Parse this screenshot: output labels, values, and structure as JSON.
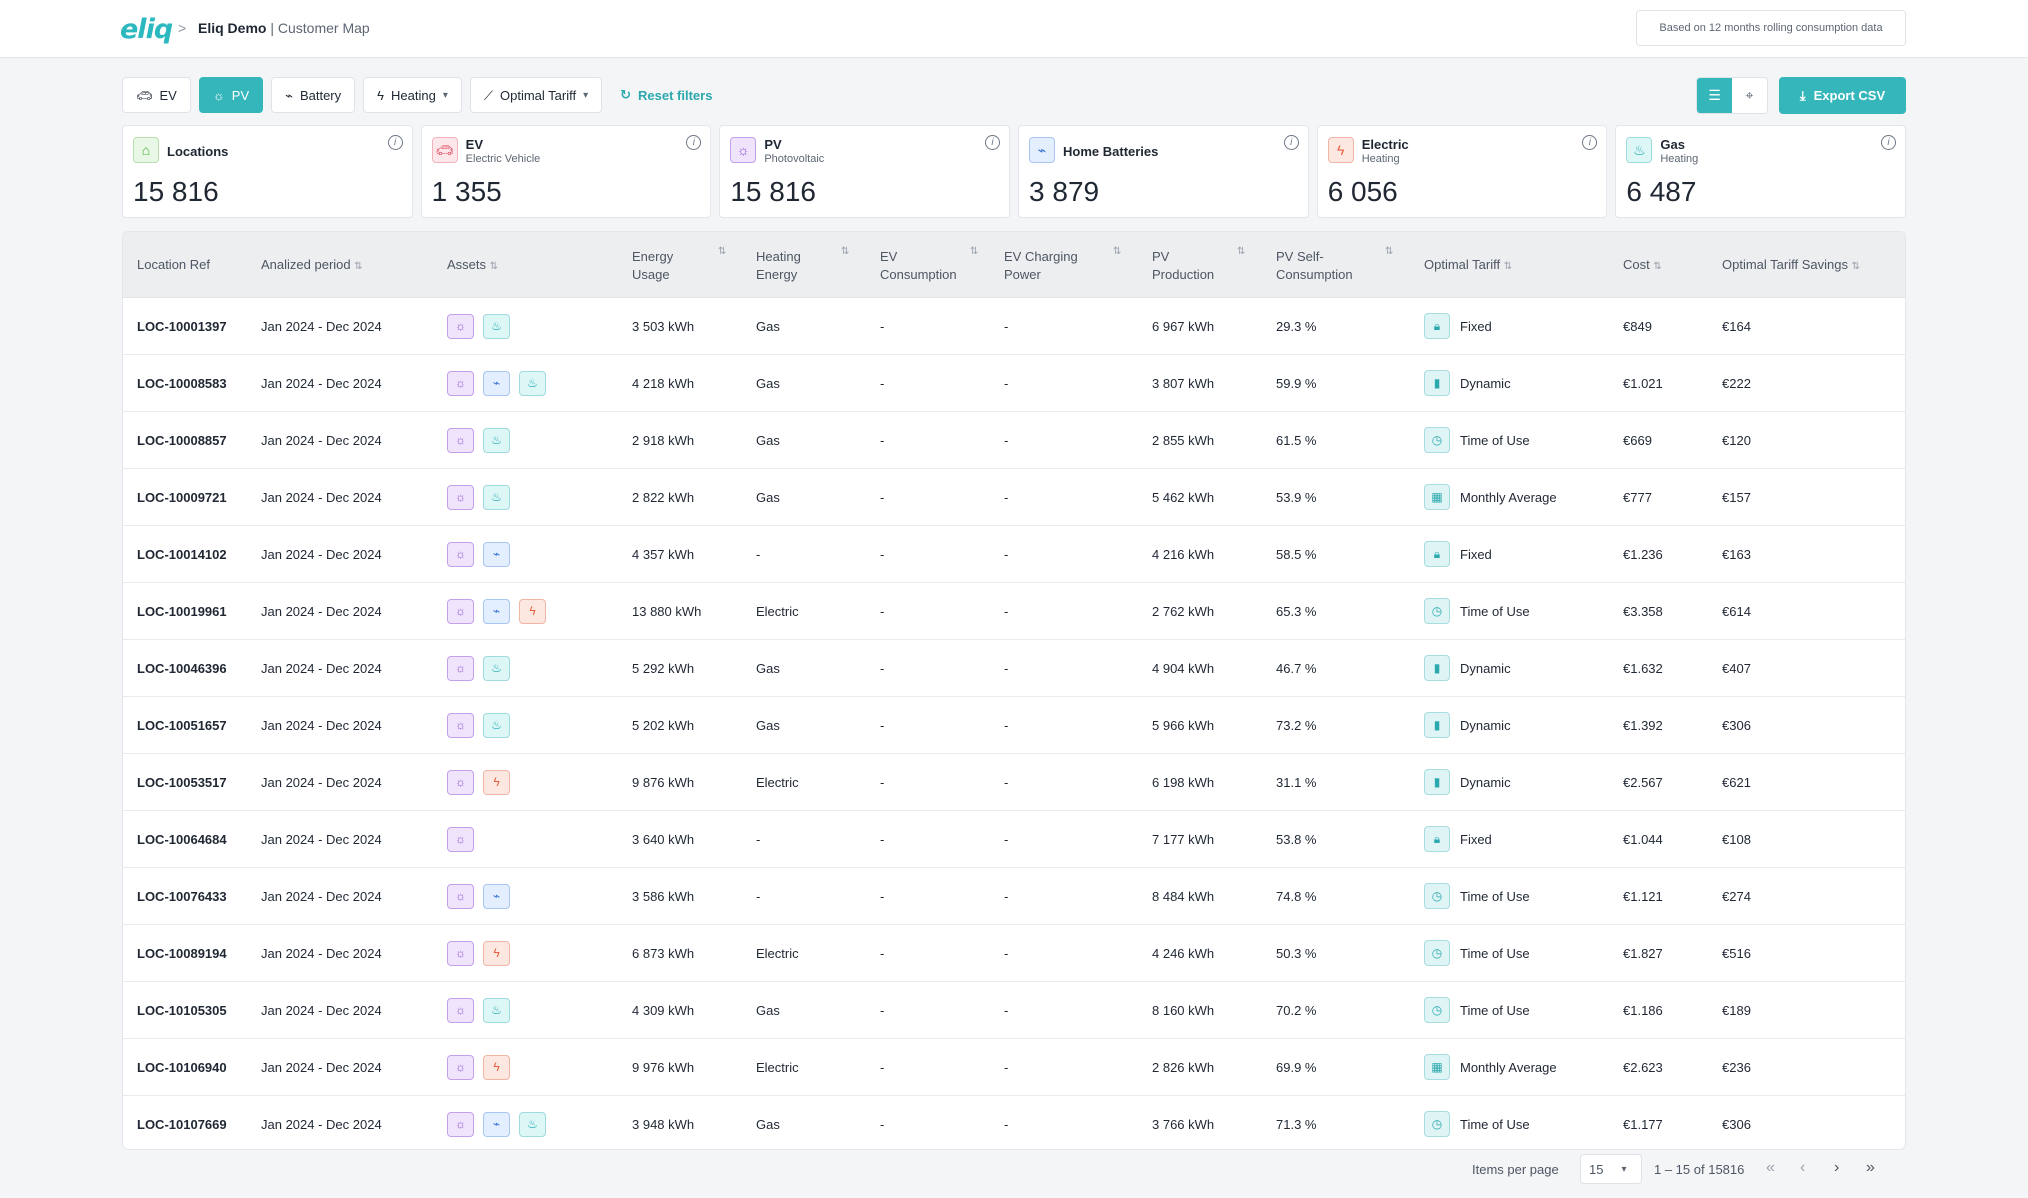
{
  "header": {
    "logo": "eliq",
    "separator": ">",
    "org": "Eliq Demo",
    "page": "| Customer Map",
    "info": "Based on 12 months rolling consumption data"
  },
  "filters": {
    "ev": "EV",
    "pv": "PV",
    "battery": "Battery",
    "heating": "Heating",
    "tariff": "Optimal Tariff",
    "reset": "Reset filters"
  },
  "toolbar": {
    "export": "Export CSV"
  },
  "cards": [
    {
      "title": "Locations",
      "sub": "",
      "value": "15 816",
      "icon": "home-icon"
    },
    {
      "title": "EV",
      "sub": "Electric Vehicle",
      "value": "1 355",
      "icon": "car-icon"
    },
    {
      "title": "PV",
      "sub": "Photovoltaic",
      "value": "15 816",
      "icon": "sun-icon"
    },
    {
      "title": "Home Batteries",
      "sub": "",
      "value": "3 879",
      "icon": "battery-icon"
    },
    {
      "title": "Electric",
      "sub": "Heating",
      "value": "6 056",
      "icon": "bolt-icon"
    },
    {
      "title": "Gas",
      "sub": "Heating",
      "value": "6 487",
      "icon": "flame-icon"
    }
  ],
  "columns": {
    "ref": "Location Ref",
    "period": "Analized period",
    "assets": "Assets",
    "energy_1": "Energy",
    "energy_2": "Usage",
    "heating_1": "Heating",
    "heating_2": "Energy",
    "evc_1": "EV",
    "evc_2": "Consumption",
    "evp_1": "EV Charging",
    "evp_2": "Power",
    "pvp_1": "PV",
    "pvp_2": "Production",
    "pvs_1": "PV Self-",
    "pvs_2": "Consumption",
    "tariff": "Optimal Tariff",
    "cost": "Cost",
    "savings": "Optimal Tariff Savings"
  },
  "rows": [
    {
      "ref": "LOC-10001397",
      "period": "Jan 2024 - Dec 2024",
      "assets": [
        "pv",
        "gas"
      ],
      "energy": "3 503 kWh",
      "heating": "Gas",
      "evc": "-",
      "evp": "-",
      "pvp": "6 967 kWh",
      "pvs": "29.3 %",
      "tariff": "Fixed",
      "cost": "€849",
      "savings": "€164"
    },
    {
      "ref": "LOC-10008583",
      "period": "Jan 2024 - Dec 2024",
      "assets": [
        "pv",
        "bat",
        "gas"
      ],
      "energy": "4 218 kWh",
      "heating": "Gas",
      "evc": "-",
      "evp": "-",
      "pvp": "3 807 kWh",
      "pvs": "59.9 %",
      "tariff": "Dynamic",
      "cost": "€1.021",
      "savings": "€222"
    },
    {
      "ref": "LOC-10008857",
      "period": "Jan 2024 - Dec 2024",
      "assets": [
        "pv",
        "gas"
      ],
      "energy": "2 918 kWh",
      "heating": "Gas",
      "evc": "-",
      "evp": "-",
      "pvp": "2 855 kWh",
      "pvs": "61.5 %",
      "tariff": "Time of Use",
      "cost": "€669",
      "savings": "€120"
    },
    {
      "ref": "LOC-10009721",
      "period": "Jan 2024 - Dec 2024",
      "assets": [
        "pv",
        "gas"
      ],
      "energy": "2 822 kWh",
      "heating": "Gas",
      "evc": "-",
      "evp": "-",
      "pvp": "5 462 kWh",
      "pvs": "53.9 %",
      "tariff": "Monthly Average",
      "cost": "€777",
      "savings": "€157"
    },
    {
      "ref": "LOC-10014102",
      "period": "Jan 2024 - Dec 2024",
      "assets": [
        "pv",
        "bat"
      ],
      "energy": "4 357 kWh",
      "heating": "-",
      "evc": "-",
      "evp": "-",
      "pvp": "4 216 kWh",
      "pvs": "58.5 %",
      "tariff": "Fixed",
      "cost": "€1.236",
      "savings": "€163"
    },
    {
      "ref": "LOC-10019961",
      "period": "Jan 2024 - Dec 2024",
      "assets": [
        "pv",
        "bat",
        "el"
      ],
      "energy": "13 880 kWh",
      "heating": "Electric",
      "evc": "-",
      "evp": "-",
      "pvp": "2 762 kWh",
      "pvs": "65.3 %",
      "tariff": "Time of Use",
      "cost": "€3.358",
      "savings": "€614"
    },
    {
      "ref": "LOC-10046396",
      "period": "Jan 2024 - Dec 2024",
      "assets": [
        "pv",
        "gas"
      ],
      "energy": "5 292 kWh",
      "heating": "Gas",
      "evc": "-",
      "evp": "-",
      "pvp": "4 904 kWh",
      "pvs": "46.7 %",
      "tariff": "Dynamic",
      "cost": "€1.632",
      "savings": "€407"
    },
    {
      "ref": "LOC-10051657",
      "period": "Jan 2024 - Dec 2024",
      "assets": [
        "pv",
        "gas"
      ],
      "energy": "5 202 kWh",
      "heating": "Gas",
      "evc": "-",
      "evp": "-",
      "pvp": "5 966 kWh",
      "pvs": "73.2 %",
      "tariff": "Dynamic",
      "cost": "€1.392",
      "savings": "€306"
    },
    {
      "ref": "LOC-10053517",
      "period": "Jan 2024 - Dec 2024",
      "assets": [
        "pv",
        "el"
      ],
      "energy": "9 876 kWh",
      "heating": "Electric",
      "evc": "-",
      "evp": "-",
      "pvp": "6 198 kWh",
      "pvs": "31.1 %",
      "tariff": "Dynamic",
      "cost": "€2.567",
      "savings": "€621"
    },
    {
      "ref": "LOC-10064684",
      "period": "Jan 2024 - Dec 2024",
      "assets": [
        "pv"
      ],
      "energy": "3 640 kWh",
      "heating": "-",
      "evc": "-",
      "evp": "-",
      "pvp": "7 177 kWh",
      "pvs": "53.8 %",
      "tariff": "Fixed",
      "cost": "€1.044",
      "savings": "€108"
    },
    {
      "ref": "LOC-10076433",
      "period": "Jan 2024 - Dec 2024",
      "assets": [
        "pv",
        "bat"
      ],
      "energy": "3 586 kWh",
      "heating": "-",
      "evc": "-",
      "evp": "-",
      "pvp": "8 484 kWh",
      "pvs": "74.8 %",
      "tariff": "Time of Use",
      "cost": "€1.121",
      "savings": "€274"
    },
    {
      "ref": "LOC-10089194",
      "period": "Jan 2024 - Dec 2024",
      "assets": [
        "pv",
        "el"
      ],
      "energy": "6 873 kWh",
      "heating": "Electric",
      "evc": "-",
      "evp": "-",
      "pvp": "4 246 kWh",
      "pvs": "50.3 %",
      "tariff": "Time of Use",
      "cost": "€1.827",
      "savings": "€516"
    },
    {
      "ref": "LOC-10105305",
      "period": "Jan 2024 - Dec 2024",
      "assets": [
        "pv",
        "gas"
      ],
      "energy": "4 309 kWh",
      "heating": "Gas",
      "evc": "-",
      "evp": "-",
      "pvp": "8 160 kWh",
      "pvs": "70.2 %",
      "tariff": "Time of Use",
      "cost": "€1.186",
      "savings": "€189"
    },
    {
      "ref": "LOC-10106940",
      "period": "Jan 2024 - Dec 2024",
      "assets": [
        "pv",
        "el"
      ],
      "energy": "9 976 kWh",
      "heating": "Electric",
      "evc": "-",
      "evp": "-",
      "pvp": "2 826 kWh",
      "pvs": "69.9 %",
      "tariff": "Monthly Average",
      "cost": "€2.623",
      "savings": "€236"
    },
    {
      "ref": "LOC-10107669",
      "period": "Jan 2024 - Dec 2024",
      "assets": [
        "pv",
        "bat",
        "gas"
      ],
      "energy": "3 948 kWh",
      "heating": "Gas",
      "evc": "-",
      "evp": "-",
      "pvp": "3 766 kWh",
      "pvs": "71.3 %",
      "tariff": "Time of Use",
      "cost": "€1.177",
      "savings": "€306"
    }
  ],
  "pagination": {
    "label": "Items per page",
    "per_page": "15",
    "range": "1 – 15 of 15816"
  }
}
